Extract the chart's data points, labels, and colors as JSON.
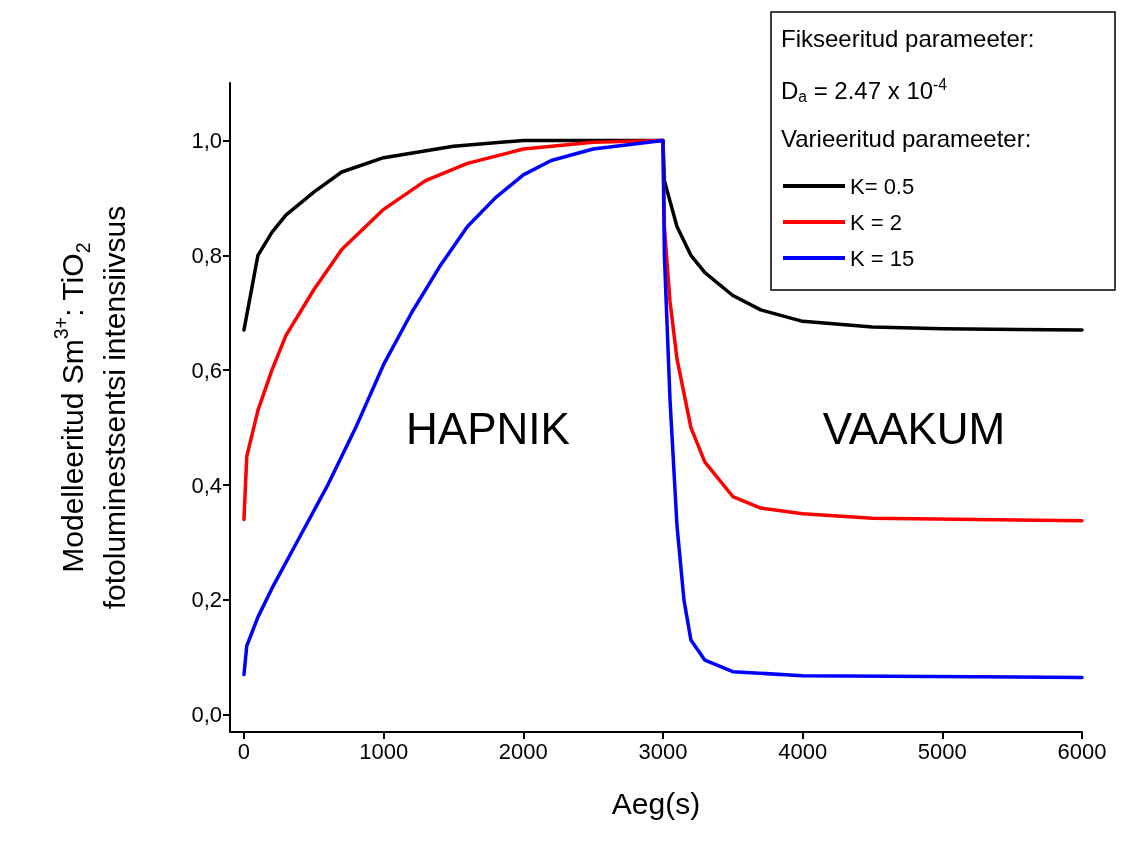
{
  "chart_data": {
    "type": "line",
    "xlabel": "Aeg(s)",
    "ylabel": "Modelleeritud Sm$^{3+}$: TiO$_{2}$\nfotoluminestsentsi intensiivsus",
    "legend_title": "Varieeritud parameeter:",
    "annotations": [
      "Fikseeritud parameeter:",
      "D$_{a}$ = 2.47 x 10$^{-4}$",
      "HAPNIK",
      "VAAKUM"
    ],
    "xlim": [
      -100,
      6000
    ],
    "xticks": [
      0,
      1000,
      2000,
      3000,
      4000,
      5000,
      6000
    ],
    "ylim": [
      -0.03,
      1.1
    ],
    "yticks": [
      {
        "value": 0,
        "label": "0,0"
      },
      {
        "value": 0.2,
        "label": "0,2"
      },
      {
        "value": 0.4,
        "label": "0,4"
      },
      {
        "value": 0.6,
        "label": "0,6"
      },
      {
        "value": 0.8,
        "label": "0,8"
      },
      {
        "value": 1.0,
        "label": "1,0"
      }
    ],
    "grid": false,
    "legend": "top right",
    "marker": "none",
    "line_style": "solid",
    "series": [
      {
        "name": "K= 0.5",
        "color": "#000000",
        "x": [
          0,
          100,
          200,
          300,
          500,
          700,
          1000,
          1500,
          2000,
          3000,
          3010,
          3100,
          3200,
          3300,
          3500,
          3700,
          4000,
          4500,
          5000,
          6000
        ],
        "values": [
          0.67,
          0.8,
          0.84,
          0.87,
          0.91,
          0.945,
          0.97,
          0.99,
          1.0,
          1.0,
          0.93,
          0.85,
          0.8,
          0.77,
          0.73,
          0.705,
          0.685,
          0.675,
          0.672,
          0.67
        ]
      },
      {
        "name": "K = 2",
        "color": "#ff0000",
        "x": [
          0,
          20,
          100,
          200,
          300,
          500,
          700,
          1000,
          1300,
          1600,
          2000,
          2500,
          3000,
          3010,
          3050,
          3100,
          3200,
          3300,
          3500,
          3700,
          4000,
          4500,
          6000
        ],
        "values": [
          0.34,
          0.45,
          0.53,
          0.6,
          0.66,
          0.74,
          0.81,
          0.88,
          0.93,
          0.96,
          0.985,
          0.997,
          1.0,
          0.85,
          0.72,
          0.62,
          0.5,
          0.44,
          0.38,
          0.36,
          0.35,
          0.342,
          0.338
        ]
      },
      {
        "name": "K = 15",
        "color": "#0000ff",
        "x": [
          0,
          20,
          100,
          200,
          400,
          600,
          800,
          1000,
          1200,
          1400,
          1600,
          1800,
          2000,
          2200,
          2500,
          3000,
          3010,
          3050,
          3100,
          3150,
          3200,
          3300,
          3500,
          4000,
          6000
        ],
        "values": [
          0.07,
          0.12,
          0.17,
          0.22,
          0.31,
          0.4,
          0.5,
          0.61,
          0.7,
          0.78,
          0.85,
          0.9,
          0.94,
          0.965,
          0.985,
          1.0,
          0.8,
          0.55,
          0.33,
          0.2,
          0.13,
          0.095,
          0.075,
          0.068,
          0.065
        ]
      }
    ]
  }
}
